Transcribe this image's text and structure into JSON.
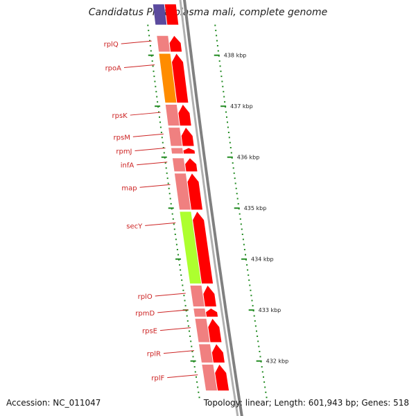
{
  "title": "Candidatus Phytoplasma mali, complete genome",
  "footer": {
    "accession": "Accession: NC_011047",
    "summary": "Topology: linear; Length: 601,943 bp; Genes: 518"
  },
  "colors": {
    "backbone": "#808080",
    "forward_arrow": "#ff0000",
    "cog_default": "#f08080",
    "cog_orange": "#ff8c00",
    "cog_lime": "#adff2f",
    "cog_purple": "#5b4a9e",
    "tick": "#228b22",
    "label": "#cc2222"
  },
  "genes": [
    {
      "name": "rplQ",
      "start": 438.4,
      "end": 438.05,
      "cog": "cog_default"
    },
    {
      "name": "rpoA",
      "start": 438.05,
      "end": 437.05,
      "cog": "cog_orange"
    },
    {
      "name": "rpsK",
      "start": 437.05,
      "end": 436.6,
      "cog": "cog_default"
    },
    {
      "name": "rpsM",
      "start": 436.6,
      "end": 436.2,
      "cog": "cog_default"
    },
    {
      "name": "rpmJ",
      "start": 436.2,
      "end": 436.05,
      "cog": "cog_default"
    },
    {
      "name": "infA",
      "start": 436.0,
      "end": 435.7,
      "cog": "cog_default"
    },
    {
      "name": "map",
      "start": 435.7,
      "end": 434.95,
      "cog": "cog_default"
    },
    {
      "name": "secY",
      "start": 434.95,
      "end": 433.5,
      "cog": "cog_lime"
    },
    {
      "name": "rplO",
      "start": 433.5,
      "end": 433.05,
      "cog": "cog_default"
    },
    {
      "name": "rpmD",
      "start": 433.05,
      "end": 432.85,
      "cog": "cog_default"
    },
    {
      "name": "rpsE",
      "start": 432.85,
      "end": 432.35,
      "cog": "cog_default"
    },
    {
      "name": "rplR",
      "start": 432.35,
      "end": 431.95,
      "cog": "cog_default"
    },
    {
      "name": "rplF",
      "start": 431.95,
      "end": 431.4,
      "cog": "cog_default"
    }
  ],
  "offscreen_gene": {
    "start": 439.0,
    "end": 438.6,
    "cog": "cog_purple"
  },
  "kbp_ticks": [
    {
      "kbp": 438,
      "label": "438 kbp"
    },
    {
      "kbp": 437,
      "label": "437 kbp"
    },
    {
      "kbp": 436,
      "label": "436 kbp"
    },
    {
      "kbp": 435,
      "label": "435 kbp"
    },
    {
      "kbp": 434,
      "label": "434 kbp"
    },
    {
      "kbp": 433,
      "label": "433 kbp"
    },
    {
      "kbp": 432,
      "label": "432 kbp"
    }
  ]
}
